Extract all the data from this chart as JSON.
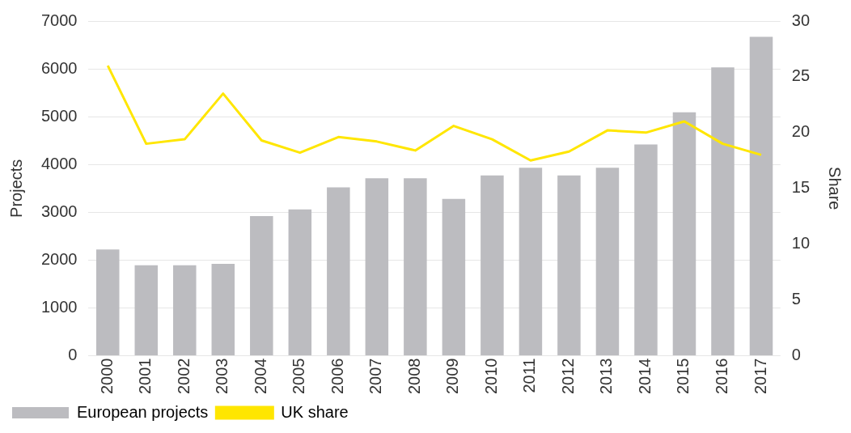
{
  "chart_data": {
    "type": "bar",
    "ylabel": "Projects",
    "y2label": "Share",
    "categories": [
      "2000",
      "2001",
      "2002",
      "2003",
      "2004",
      "2005",
      "2006",
      "2007",
      "2008",
      "2009",
      "2010",
      "2011",
      "2012",
      "2013",
      "2014",
      "2015",
      "2016",
      "2017"
    ],
    "series": [
      {
        "name": "European projects",
        "color": "#bcbcc0",
        "values": [
          2220,
          1890,
          1890,
          1920,
          2920,
          3060,
          3520,
          3710,
          3710,
          3280,
          3770,
          3930,
          3770,
          3930,
          4420,
          5090,
          6030,
          6670
        ]
      },
      {
        "name": "UK share",
        "type": "line",
        "axis": "y2",
        "color": "#ffe600",
        "values": [
          26.0,
          19.0,
          19.4,
          23.5,
          19.3,
          18.2,
          19.6,
          19.2,
          18.4,
          20.6,
          19.4,
          17.5,
          18.3,
          20.2,
          20.0,
          21.0,
          19.0,
          18.0
        ]
      }
    ],
    "ylim": [
      0,
      7000
    ],
    "yticks": [
      0,
      1000,
      2000,
      3000,
      4000,
      5000,
      6000,
      7000
    ],
    "y2lim": [
      0,
      30
    ],
    "y2ticks": [
      0,
      5,
      10,
      15,
      20,
      25,
      30
    ],
    "grid": "y",
    "legend": "bottom",
    "marker": "none",
    "line_style": "solid"
  }
}
